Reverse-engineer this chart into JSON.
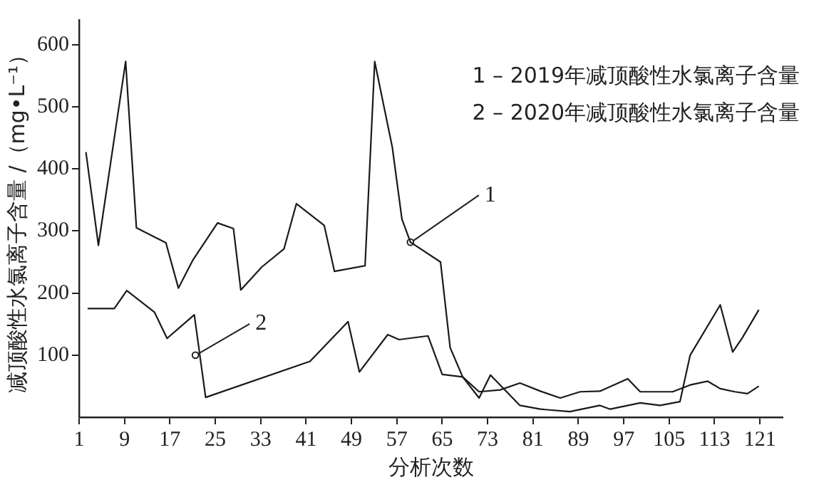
{
  "chart_data": {
    "type": "line",
    "xlabel": "分析次数",
    "ylabel": "减顶酸性水氯离子含量 /（mg•L⁻¹）",
    "xlim": [
      1,
      125
    ],
    "xticks": [
      1,
      9,
      17,
      25,
      33,
      41,
      49,
      57,
      65,
      73,
      81,
      89,
      97,
      105,
      113,
      121
    ],
    "ylim": [
      0,
      640
    ],
    "yticks": [
      100,
      200,
      300,
      400,
      500,
      600
    ],
    "grid": false,
    "legend": false,
    "marker": "none",
    "line_style": "solid",
    "series": [
      {
        "color": "#1a1a1a",
        "x": [
          2.2,
          4.4,
          9.2,
          11.1,
          16.3,
          18.5,
          21.1,
          25.4,
          28.2,
          29.5,
          33.2,
          37.1,
          39.3,
          44.2,
          46.0,
          51.4,
          53.1,
          56.2,
          57.9,
          59.4,
          64.7,
          66.4,
          68.6,
          71.5,
          73.5,
          78.7,
          82.3,
          87.5,
          92.8,
          94.6,
          99.9,
          103.4,
          106.9,
          108.7,
          114,
          116.2,
          117.9,
          120.8
        ],
        "values": [
          427,
          277,
          573,
          305,
          281,
          208,
          254,
          313,
          304,
          205,
          242,
          271,
          344,
          309,
          235,
          244,
          573,
          435,
          319,
          282,
          250,
          112,
          65,
          31,
          68,
          19,
          13,
          9,
          19,
          13,
          23,
          19,
          25,
          100,
          181,
          105,
          128,
          173
        ]
      },
      {
        "color": "#1a1a1a",
        "x": [
          2.5,
          7.2,
          9.4,
          14.3,
          16.5,
          21.3,
          23.3,
          41.7,
          48.4,
          50.4,
          55.4,
          57.4,
          62.5,
          65,
          68.6,
          71.5,
          75.2,
          78.7,
          82.3,
          85.8,
          89.3,
          92.8,
          97.7,
          99.9,
          105.6,
          108.7,
          111.8,
          114,
          116.6,
          118.8,
          120.8
        ],
        "values": [
          175,
          175,
          204,
          169,
          127,
          165,
          32,
          90,
          154,
          73,
          133,
          125,
          131,
          69,
          65,
          41,
          44,
          55,
          42,
          31,
          41,
          42,
          62,
          41,
          41,
          52,
          58,
          46,
          41,
          38,
          50
        ]
      }
    ],
    "annotations": [
      "1 – 2019年减顶酸性水氯离子含量",
      "2 – 2020年减顶酸性水氯离子含量",
      {
        "text": "1",
        "x": 59.4,
        "y": 282
      },
      {
        "text": "2",
        "x": 21.5,
        "y": 100
      }
    ]
  }
}
